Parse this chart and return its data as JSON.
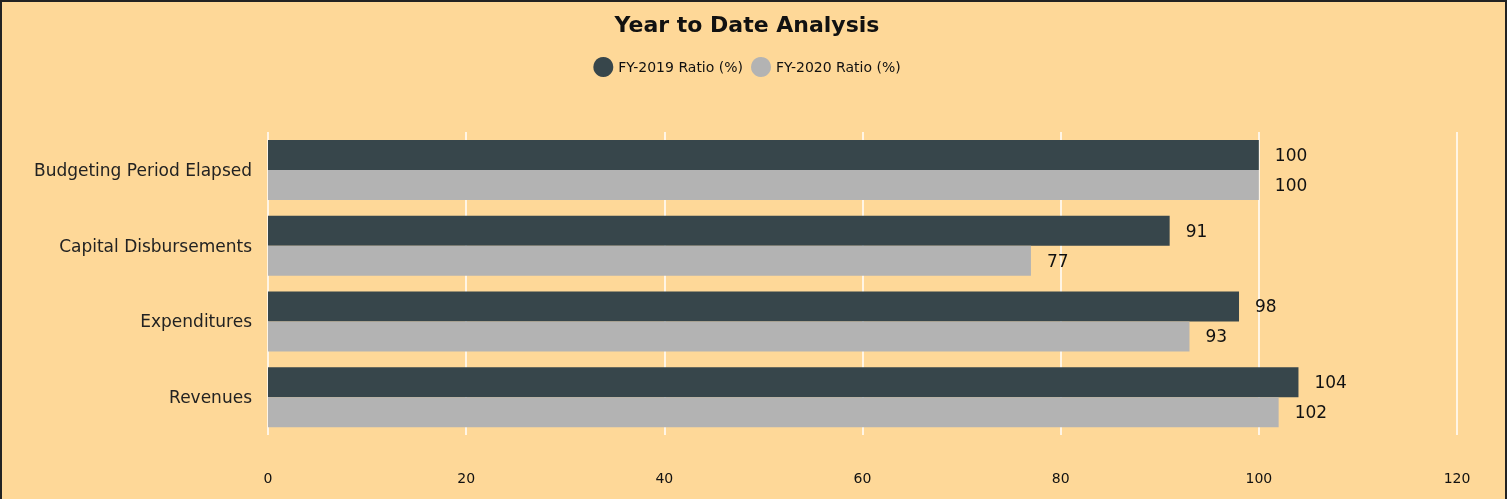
{
  "chart_data": {
    "type": "bar",
    "orientation": "horizontal",
    "title": "Year to Date Analysis",
    "categories": [
      "Budgeting Period Elapsed",
      "Capital Disbursements",
      "Expenditures",
      "Revenues"
    ],
    "series": [
      {
        "name": "FY-2019 Ratio (%)",
        "color": "#37464b",
        "values": [
          100,
          91,
          98,
          104
        ]
      },
      {
        "name": "FY-2020 Ratio (%)",
        "color": "#b3b3b3",
        "values": [
          100,
          77,
          93,
          102
        ]
      }
    ],
    "xlim": [
      0,
      120
    ],
    "xticks": [
      0,
      20,
      40,
      60,
      80,
      100,
      120
    ],
    "grid": "x",
    "legend": "top",
    "data_labels": true
  }
}
